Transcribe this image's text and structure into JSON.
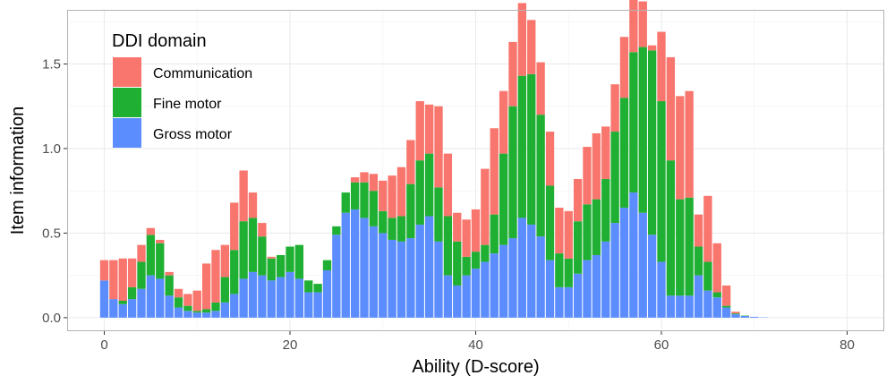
{
  "chart_data": {
    "type": "bar",
    "stacked": true,
    "xlabel": "Ability (D-score)",
    "ylabel": "Item information",
    "xlim": [
      -4,
      84
    ],
    "ylim": [
      -0.08,
      1.82
    ],
    "x_ticks": [
      0,
      20,
      40,
      60,
      80
    ],
    "y_ticks": [
      0.0,
      0.5,
      1.0,
      1.5
    ],
    "y_tick_labels": [
      "0.0",
      "0.5",
      "1.0",
      "1.5"
    ],
    "grid": true,
    "legend": {
      "title": "DDI domain",
      "placement": "top-left",
      "entries": [
        {
          "label": "Communication",
          "color": "#F8766D"
        },
        {
          "label": "Fine motor",
          "color": "#1FB033"
        },
        {
          "label": "Gross motor",
          "color": "#5B8DFF"
        }
      ]
    },
    "x": [
      0,
      1,
      2,
      3,
      4,
      5,
      6,
      7,
      8,
      9,
      10,
      11,
      12,
      13,
      14,
      15,
      16,
      17,
      18,
      19,
      20,
      21,
      22,
      23,
      24,
      25,
      26,
      27,
      28,
      29,
      30,
      31,
      32,
      33,
      34,
      35,
      36,
      37,
      38,
      39,
      40,
      41,
      42,
      43,
      44,
      45,
      46,
      47,
      48,
      49,
      50,
      51,
      52,
      53,
      54,
      55,
      56,
      57,
      58,
      59,
      60,
      61,
      62,
      63,
      64,
      65,
      66,
      67,
      68,
      69,
      70,
      71,
      72,
      73,
      74,
      75,
      76,
      77,
      78,
      79,
      80
    ],
    "series": [
      {
        "name": "Gross motor",
        "color": "#5B8DFF",
        "values": [
          0.22,
          0.11,
          0.08,
          0.11,
          0.17,
          0.25,
          0.23,
          0.13,
          0.06,
          0.04,
          0.03,
          0.03,
          0.04,
          0.09,
          0.14,
          0.23,
          0.27,
          0.25,
          0.22,
          0.24,
          0.27,
          0.23,
          0.15,
          0.15,
          0.28,
          0.49,
          0.62,
          0.64,
          0.59,
          0.54,
          0.5,
          0.46,
          0.45,
          0.47,
          0.55,
          0.6,
          0.45,
          0.25,
          0.19,
          0.25,
          0.29,
          0.33,
          0.38,
          0.43,
          0.47,
          0.59,
          0.55,
          0.48,
          0.34,
          0.18,
          0.18,
          0.26,
          0.34,
          0.37,
          0.45,
          0.56,
          0.65,
          0.74,
          0.62,
          0.49,
          0.33,
          0.13,
          0.13,
          0.13,
          0.25,
          0.16,
          0.12,
          0.06,
          0.02,
          0.01,
          0.005,
          0.002,
          0,
          0,
          0,
          0,
          0,
          0,
          0,
          0,
          0
        ]
      },
      {
        "name": "Fine motor",
        "color": "#1FB033",
        "values": [
          0.0,
          0.0,
          0.02,
          0.07,
          0.16,
          0.24,
          0.21,
          0.12,
          0.06,
          0.03,
          0.01,
          0.02,
          0.05,
          0.15,
          0.26,
          0.34,
          0.32,
          0.23,
          0.13,
          0.13,
          0.15,
          0.2,
          0.07,
          0.05,
          0.06,
          0.05,
          0.12,
          0.16,
          0.21,
          0.21,
          0.13,
          0.13,
          0.15,
          0.32,
          0.38,
          0.37,
          0.32,
          0.35,
          0.26,
          0.11,
          0.1,
          0.1,
          0.23,
          0.54,
          0.78,
          0.84,
          0.89,
          0.72,
          0.44,
          0.2,
          0.17,
          0.31,
          0.33,
          0.33,
          0.37,
          0.54,
          0.65,
          0.83,
          0.98,
          1.09,
          0.95,
          0.8,
          0.57,
          0.58,
          0.17,
          0.17,
          0.03,
          0.01,
          0.005,
          0.002,
          0,
          0,
          0,
          0,
          0,
          0,
          0,
          0,
          0,
          0,
          0
        ]
      },
      {
        "name": "Communication",
        "color": "#F8766D",
        "values": [
          0.12,
          0.23,
          0.25,
          0.17,
          0.1,
          0.04,
          0.02,
          0.02,
          0.05,
          0.07,
          0.12,
          0.27,
          0.31,
          0.19,
          0.28,
          0.3,
          0.15,
          0.08,
          0.01,
          0.0,
          0.0,
          0.0,
          0.0,
          0.0,
          0.0,
          0.0,
          0.0,
          0.03,
          0.06,
          0.1,
          0.18,
          0.25,
          0.29,
          0.26,
          0.35,
          0.29,
          0.48,
          0.37,
          0.17,
          0.22,
          0.25,
          0.45,
          0.51,
          0.37,
          0.38,
          0.43,
          0.32,
          0.31,
          0.32,
          0.27,
          0.28,
          0.25,
          0.34,
          0.39,
          0.31,
          0.28,
          0.36,
          0.37,
          0.27,
          0.03,
          0.41,
          0.61,
          0.61,
          0.63,
          0.19,
          0.39,
          0.29,
          0.12,
          0.01,
          0,
          0,
          0,
          0,
          0,
          0,
          0,
          0,
          0,
          0,
          0,
          0
        ]
      }
    ]
  }
}
